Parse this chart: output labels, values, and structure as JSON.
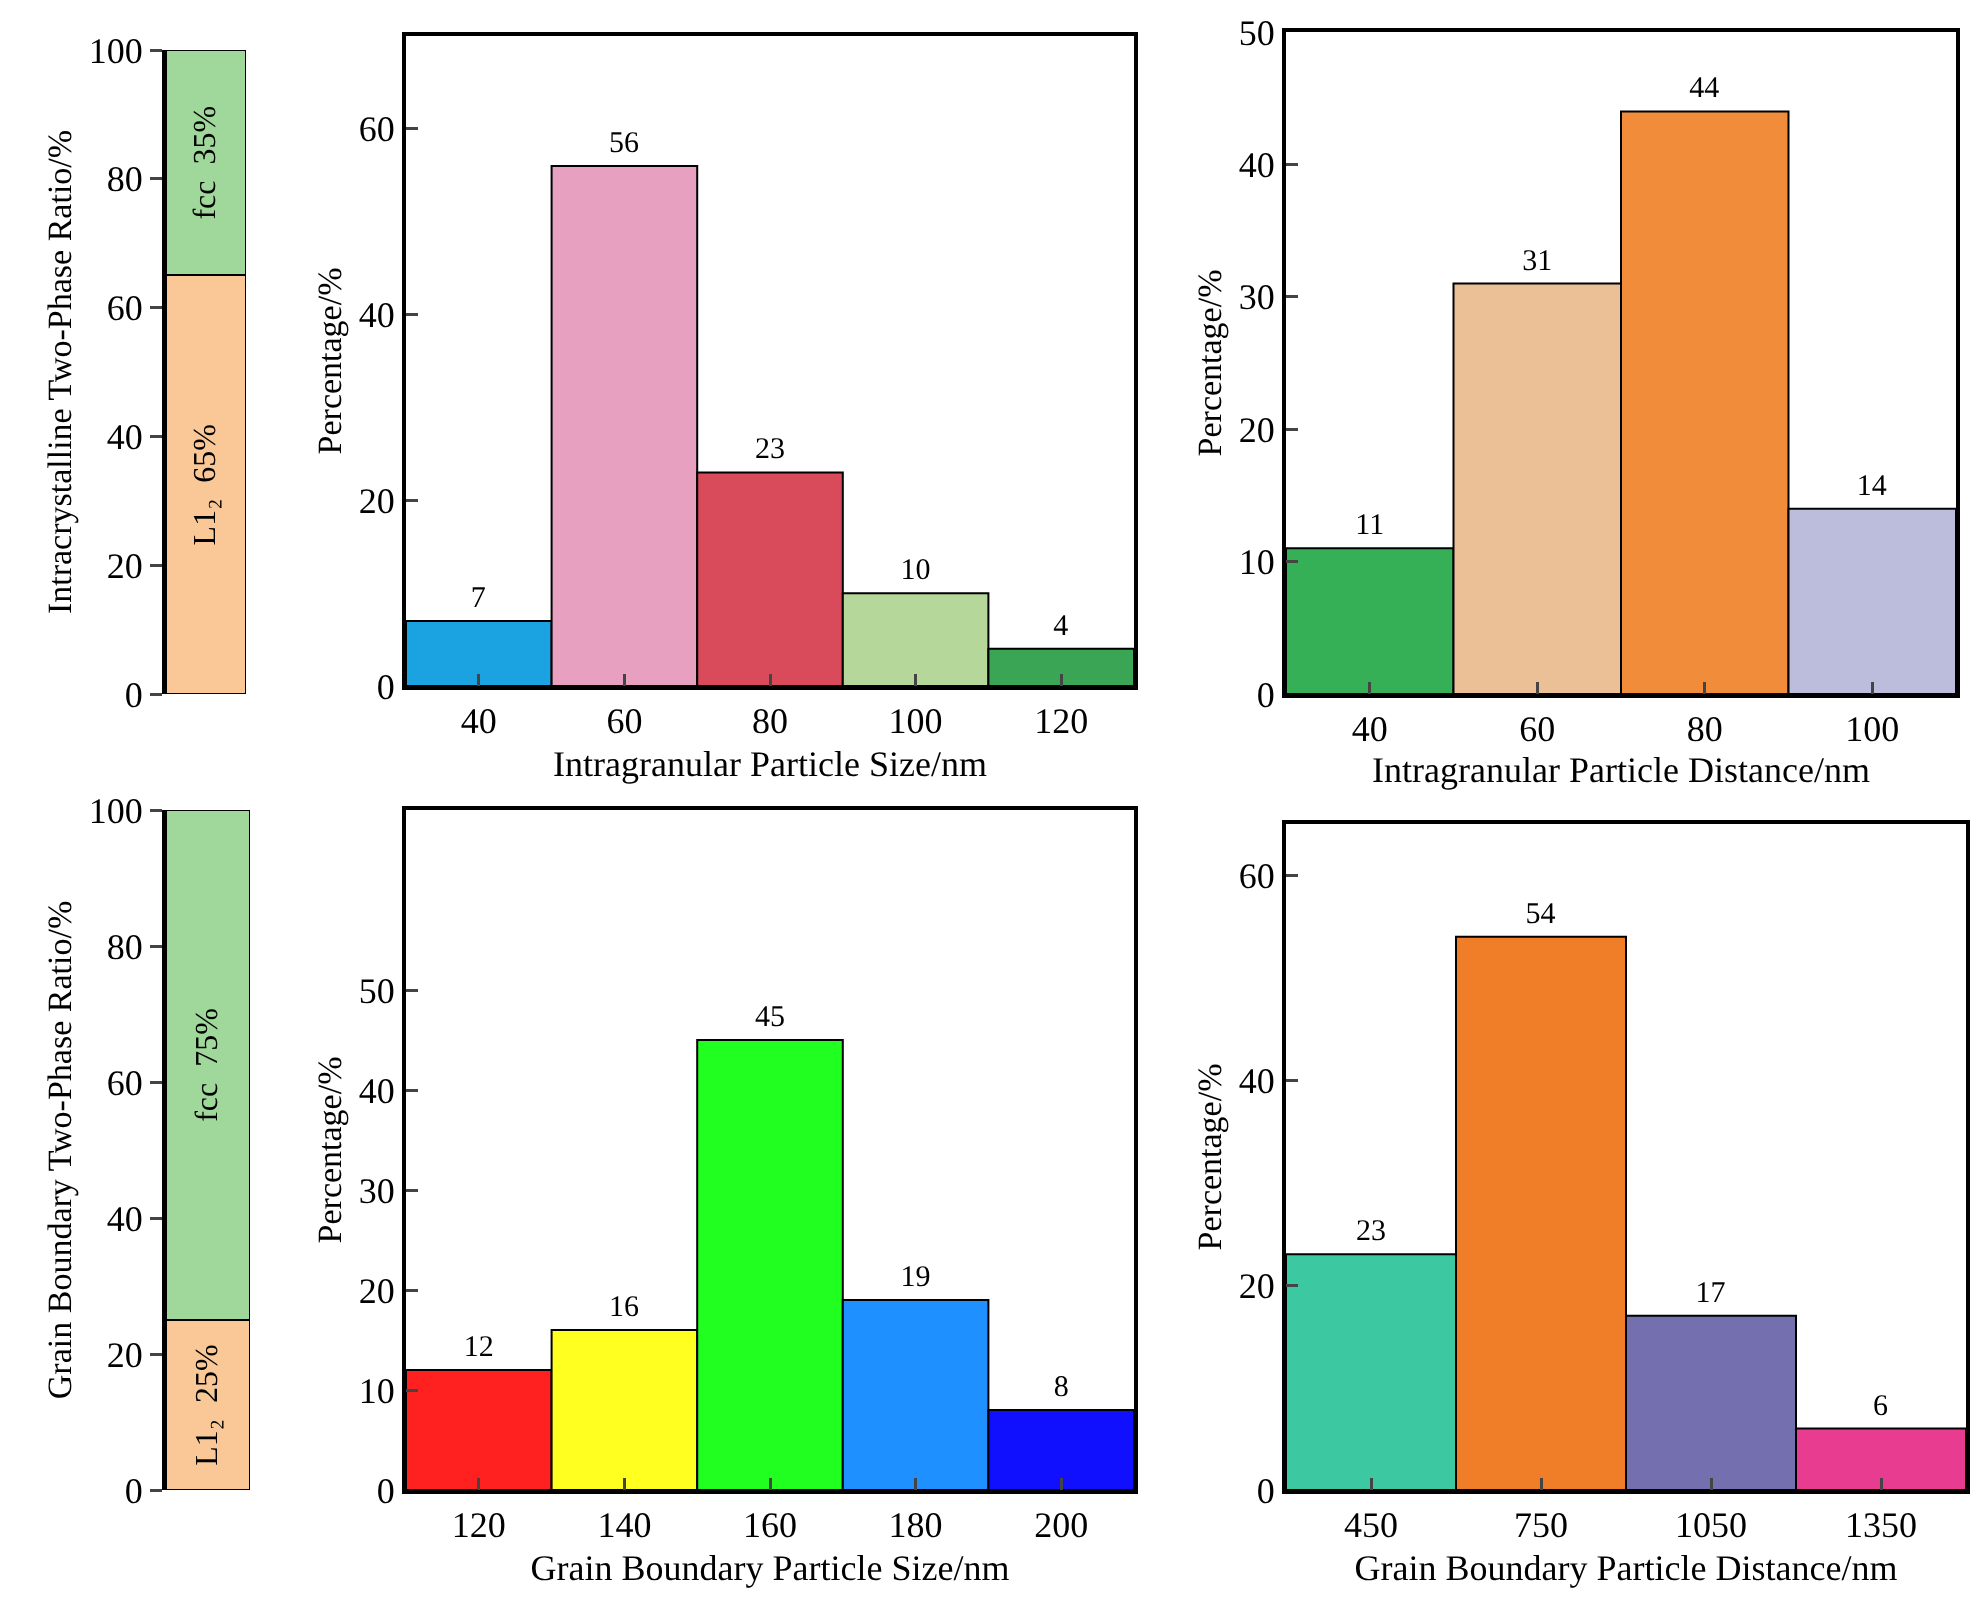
{
  "chart_data": [
    {
      "type": "bar",
      "stacked": true,
      "categories": [
        null
      ],
      "ylabel": "Intracrystalline Two-Phase Ratio/%",
      "ylim": [
        0,
        100
      ],
      "yticks": [
        0,
        20,
        40,
        60,
        80,
        100
      ],
      "tick_labels": "y",
      "series": [
        {
          "name": "L1₂",
          "color": "#f9c896",
          "values": [
            65
          ],
          "value_labels": [
            "65%"
          ]
        },
        {
          "name": "fcc",
          "color": "#9fd89a",
          "values": [
            35
          ],
          "value_labels": [
            "35%"
          ]
        }
      ]
    },
    {
      "type": "bar",
      "categories": [
        "40",
        "60",
        "80",
        "100",
        "120"
      ],
      "values": [
        7,
        56,
        23,
        10,
        4
      ],
      "colors": [
        "#1aa3e0",
        "#e8a0c0",
        "#d94a5a",
        "#b5d89a",
        "#3aa655"
      ],
      "data_labels": true,
      "xlabel": "Intragranular Particle Size/nm",
      "ylabel": "Percentage/%",
      "ylim": [
        0,
        70
      ],
      "yticks": [
        0,
        20,
        40,
        60
      ]
    },
    {
      "type": "bar",
      "categories": [
        "40",
        "60",
        "80",
        "100"
      ],
      "values": [
        11,
        31,
        44,
        14
      ],
      "colors": [
        "#35b057",
        "#ecc096",
        "#f08c3a",
        "#bcbcdc"
      ],
      "data_labels": true,
      "xlabel": "Intragranular Particle Distance/nm",
      "ylabel": "Percentage/%",
      "ylim": [
        0,
        50
      ],
      "yticks": [
        0,
        10,
        20,
        30,
        40,
        50
      ]
    },
    {
      "type": "bar",
      "stacked": true,
      "categories": [
        null
      ],
      "ylabel": "Grain Boundary Two-Phase Ratio/%",
      "ylim": [
        0,
        100
      ],
      "yticks": [
        0,
        20,
        40,
        60,
        80,
        100
      ],
      "tick_labels": "y",
      "series": [
        {
          "name": "L1₂",
          "color": "#f9c896",
          "values": [
            25
          ],
          "value_labels": [
            "25%"
          ]
        },
        {
          "name": "fcc",
          "color": "#9fd89a",
          "values": [
            75
          ],
          "value_labels": [
            "75%"
          ]
        }
      ]
    },
    {
      "type": "bar",
      "categories": [
        "120",
        "140",
        "160",
        "180",
        "200"
      ],
      "values": [
        12,
        16,
        45,
        19,
        8
      ],
      "colors": [
        "#ff2020",
        "#ffff20",
        "#20ff20",
        "#1e90ff",
        "#1010ff"
      ],
      "data_labels": true,
      "xlabel": "Grain Boundary Particle Size/nm",
      "ylabel": "Percentage/%",
      "ylim": [
        0,
        68
      ],
      "yticks": [
        0,
        10,
        20,
        30,
        40,
        50
      ]
    },
    {
      "type": "bar",
      "categories": [
        "450",
        "750",
        "1050",
        "1350"
      ],
      "values": [
        23,
        54,
        17,
        6
      ],
      "colors": [
        "#3cc8a0",
        "#f07d28",
        "#7470b0",
        "#e83c90"
      ],
      "data_labels": true,
      "xlabel": "Grain Boundary Particle Distance/nm",
      "ylabel": "Percentage/%",
      "ylim": [
        0,
        65
      ],
      "yticks": [
        0,
        20,
        40,
        60
      ]
    }
  ]
}
